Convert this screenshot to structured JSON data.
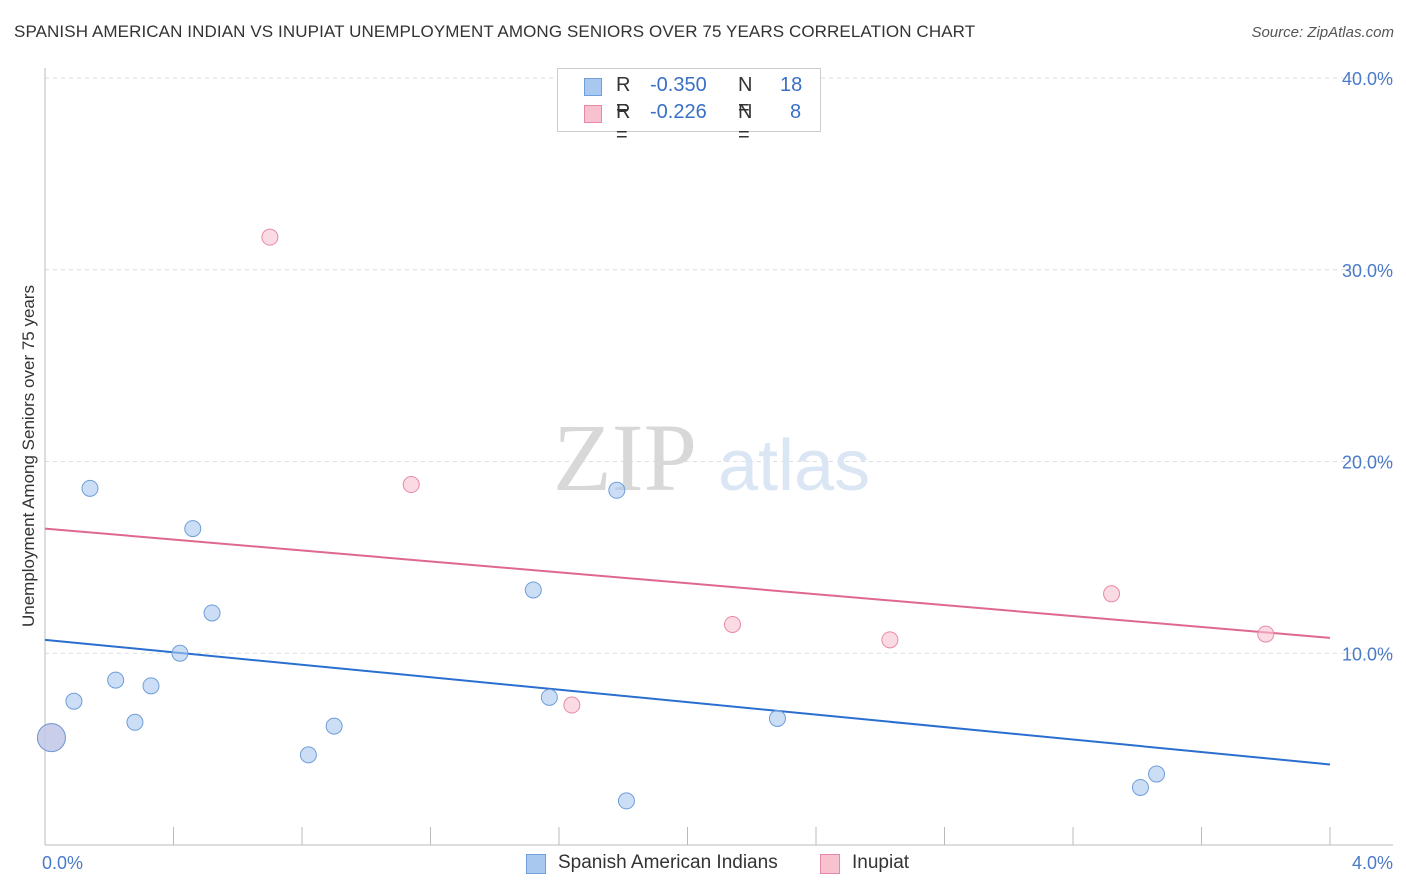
{
  "title": "SPANISH AMERICAN INDIAN VS INUPIAT UNEMPLOYMENT AMONG SENIORS OVER 75 YEARS CORRELATION CHART",
  "source": "Source: ZipAtlas.com",
  "watermark": {
    "zip": "ZIP",
    "atlas": "atlas"
  },
  "legend": {
    "rows": [
      {
        "r_label": "R =",
        "r_value": "-0.350",
        "n_label": "N =",
        "n_value": "18",
        "color": "#a9c8f0",
        "border": "#6f9ed8"
      },
      {
        "r_label": "R =",
        "r_value": "-0.226",
        "n_label": "N =",
        "n_value": "8",
        "color": "#f7c1d0",
        "border": "#e88aa6"
      }
    ]
  },
  "bottom_legend": [
    {
      "label": "Spanish American Indians",
      "color": "#a9c8f0",
      "border": "#6f9ed8"
    },
    {
      "label": "Inupiat",
      "color": "#f7c1d0",
      "border": "#e88aa6"
    }
  ],
  "chart_data": {
    "type": "scatter",
    "title": "SPANISH AMERICAN INDIAN VS INUPIAT UNEMPLOYMENT AMONG SENIORS OVER 75 YEARS CORRELATION CHART",
    "xlabel": "",
    "ylabel": "Unemployment Among Seniors over 75 years",
    "xlim": [
      0,
      4.0
    ],
    "ylim": [
      0,
      40
    ],
    "x_tick_labels": [
      "0.0%",
      "4.0%"
    ],
    "y_ticks": [
      10,
      20,
      30,
      40
    ],
    "y_tick_labels": [
      "10.0%",
      "20.0%",
      "30.0%",
      "40.0%"
    ],
    "grid": true,
    "series": [
      {
        "name": "Spanish American Indians",
        "color": "#a9c8f0",
        "line_color": "#2a6fd0",
        "points": [
          {
            "x": 0.02,
            "y": 5.6,
            "big": true
          },
          {
            "x": 0.09,
            "y": 7.5
          },
          {
            "x": 0.14,
            "y": 18.6
          },
          {
            "x": 0.22,
            "y": 8.6
          },
          {
            "x": 0.28,
            "y": 6.4
          },
          {
            "x": 0.33,
            "y": 8.3
          },
          {
            "x": 0.42,
            "y": 10.0
          },
          {
            "x": 0.46,
            "y": 16.5
          },
          {
            "x": 0.52,
            "y": 12.1
          },
          {
            "x": 0.82,
            "y": 4.7
          },
          {
            "x": 0.9,
            "y": 6.2
          },
          {
            "x": 1.52,
            "y": 13.3
          },
          {
            "x": 1.57,
            "y": 7.7
          },
          {
            "x": 1.78,
            "y": 18.5
          },
          {
            "x": 1.81,
            "y": 2.3
          },
          {
            "x": 2.28,
            "y": 6.6
          },
          {
            "x": 3.41,
            "y": 3.0
          },
          {
            "x": 3.46,
            "y": 3.7
          }
        ],
        "trend": {
          "x0": 0,
          "y0": 10.7,
          "x1": 4.0,
          "y1": 4.2
        }
      },
      {
        "name": "Inupiat",
        "color": "#f7c1d0",
        "line_color": "#e0688e",
        "points": [
          {
            "x": 0.02,
            "y": 5.6,
            "big": true
          },
          {
            "x": 0.7,
            "y": 31.7
          },
          {
            "x": 1.14,
            "y": 18.8
          },
          {
            "x": 1.64,
            "y": 7.3
          },
          {
            "x": 2.14,
            "y": 11.5
          },
          {
            "x": 2.63,
            "y": 10.7
          },
          {
            "x": 3.32,
            "y": 13.1
          },
          {
            "x": 3.8,
            "y": 11.0
          }
        ],
        "trend": {
          "x0": 0,
          "y0": 16.5,
          "x1": 4.0,
          "y1": 10.8
        }
      }
    ]
  }
}
